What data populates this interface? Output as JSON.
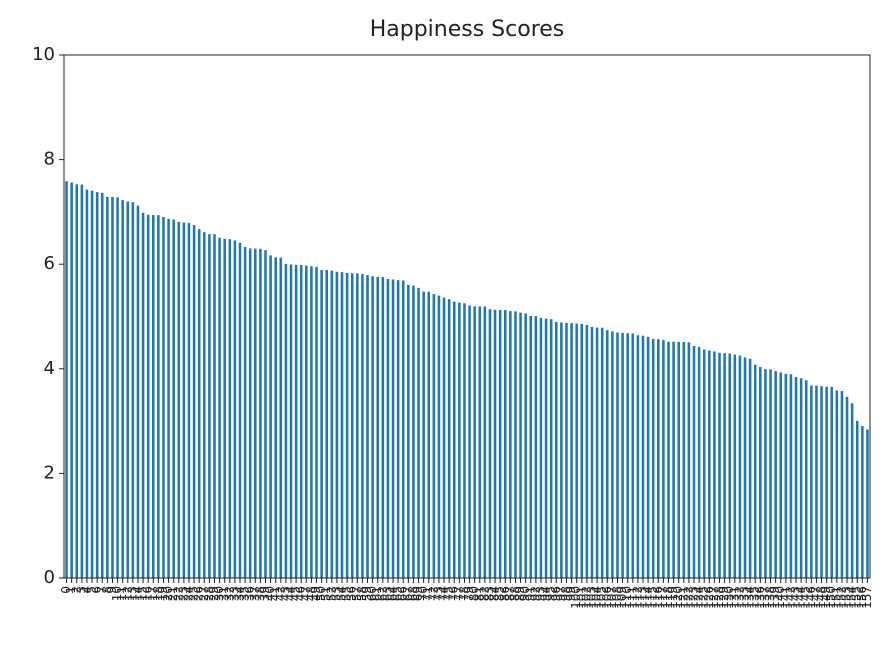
{
  "chart_data": {
    "type": "bar",
    "title": "Happiness Scores",
    "categories": [
      "0",
      "1",
      "2",
      "3",
      "4",
      "5",
      "6",
      "7",
      "8",
      "9",
      "10",
      "11",
      "12",
      "13",
      "14",
      "15",
      "16",
      "17",
      "18",
      "19",
      "20",
      "21",
      "22",
      "23",
      "24",
      "25",
      "26",
      "27",
      "28",
      "29",
      "30",
      "31",
      "32",
      "33",
      "34",
      "35",
      "36",
      "37",
      "38",
      "39",
      "40",
      "41",
      "42",
      "43",
      "44",
      "45",
      "46",
      "47",
      "48",
      "49",
      "50",
      "51",
      "52",
      "53",
      "54",
      "55",
      "56",
      "57",
      "58",
      "59",
      "60",
      "61",
      "62",
      "63",
      "64",
      "65",
      "66",
      "67",
      "68",
      "69",
      "70",
      "71",
      "72",
      "73",
      "74",
      "75",
      "76",
      "77",
      "78",
      "79",
      "80",
      "81",
      "82",
      "83",
      "84",
      "85",
      "86",
      "87",
      "88",
      "89",
      "90",
      "91",
      "92",
      "93",
      "94",
      "95",
      "96",
      "97",
      "98",
      "99",
      "100",
      "101",
      "102",
      "103",
      "104",
      "105",
      "106",
      "107",
      "108",
      "109",
      "110",
      "111",
      "112",
      "113",
      "114",
      "115",
      "116",
      "117",
      "118",
      "119",
      "120",
      "121",
      "122",
      "123",
      "124",
      "125",
      "126",
      "127",
      "128",
      "129",
      "130",
      "131",
      "132",
      "133",
      "134",
      "135",
      "136",
      "137",
      "138",
      "139",
      "140",
      "141",
      "142",
      "143",
      "144",
      "145",
      "146",
      "147",
      "148",
      "149",
      "150",
      "151",
      "152",
      "153",
      "154",
      "155",
      "156",
      "157"
    ],
    "values": [
      7.587,
      7.561,
      7.527,
      7.522,
      7.427,
      7.406,
      7.378,
      7.364,
      7.286,
      7.284,
      7.278,
      7.226,
      7.2,
      7.187,
      7.119,
      6.983,
      6.946,
      6.94,
      6.937,
      6.901,
      6.867,
      6.853,
      6.81,
      6.798,
      6.786,
      6.75,
      6.67,
      6.611,
      6.575,
      6.574,
      6.505,
      6.485,
      6.477,
      6.455,
      6.411,
      6.329,
      6.302,
      6.298,
      6.295,
      6.269,
      6.168,
      6.13,
      6.123,
      6.003,
      5.995,
      5.987,
      5.984,
      5.975,
      5.96,
      5.948,
      5.89,
      5.889,
      5.878,
      5.855,
      5.848,
      5.833,
      5.828,
      5.824,
      5.813,
      5.791,
      5.77,
      5.759,
      5.754,
      5.716,
      5.709,
      5.695,
      5.689,
      5.605,
      5.589,
      5.548,
      5.477,
      5.474,
      5.429,
      5.399,
      5.36,
      5.332,
      5.286,
      5.268,
      5.253,
      5.212,
      5.194,
      5.192,
      5.192,
      5.14,
      5.129,
      5.124,
      5.123,
      5.102,
      5.098,
      5.073,
      5.057,
      5.013,
      5.007,
      4.971,
      4.959,
      4.949,
      4.898,
      4.885,
      4.876,
      4.874,
      4.867,
      4.857,
      4.839,
      4.8,
      4.788,
      4.786,
      4.739,
      4.715,
      4.694,
      4.686,
      4.681,
      4.677,
      4.642,
      4.633,
      4.61,
      4.571,
      4.565,
      4.55,
      4.518,
      4.517,
      4.514,
      4.512,
      4.507,
      4.436,
      4.419,
      4.369,
      4.35,
      4.332,
      4.307,
      4.297,
      4.292,
      4.271,
      4.252,
      4.218,
      4.194,
      4.077,
      4.033,
      3.995,
      3.989,
      3.956,
      3.931,
      3.904,
      3.896,
      3.845,
      3.819,
      3.781,
      3.681,
      3.678,
      3.667,
      3.656,
      3.655,
      3.587,
      3.575,
      3.465,
      3.34,
      3.006,
      2.905,
      2.839
    ],
    "color": "#1f77b4",
    "ylim": [
      0,
      10
    ],
    "yticks": [
      0,
      2,
      4,
      6,
      8,
      10
    ],
    "grid": false
  }
}
